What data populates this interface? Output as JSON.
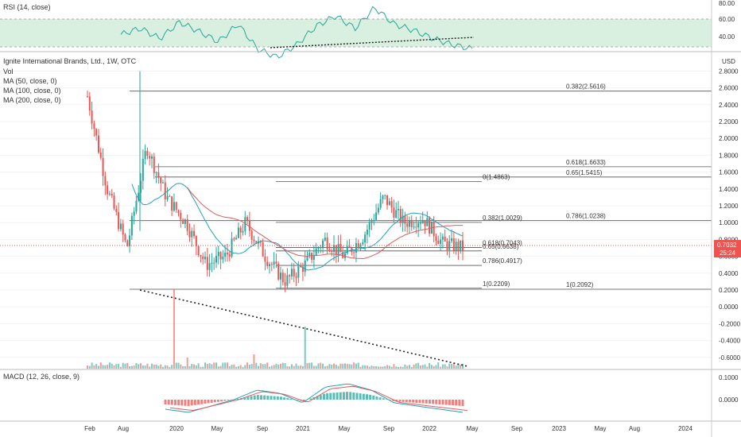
{
  "rsi_panel": {
    "label": "RSI (14, close)",
    "ticks": [
      "80.00",
      "60.00",
      "40.00"
    ]
  },
  "price_panel": {
    "title": "Ignite International Brands, Ltd., 1W, OTC",
    "legend": [
      "Vol",
      "MA (50, close, 0)",
      "MA (100, close, 0)",
      "MA (200, close, 0)"
    ],
    "currency": "USD",
    "ticks": [
      "2.8000",
      "2.6000",
      "2.4000",
      "2.2000",
      "2.0000",
      "1.8000",
      "1.6000",
      "1.4000",
      "1.2000",
      "1.0000",
      "0.8000",
      "0.6000",
      "0.4000",
      "0.2000",
      "0.0000",
      "-0.2000",
      "-0.4000",
      "-0.6000"
    ],
    "current_price": "0.7032",
    "countdown": "25:24"
  },
  "macd_panel": {
    "label": "MACD (12, 26, close, 9)",
    "ticks": [
      "0.1000",
      "0.0000"
    ]
  },
  "x_axis": {
    "labels": [
      "Feb",
      "Aug",
      "2020",
      "May",
      "Sep",
      "2021",
      "May",
      "Sep",
      "2022",
      "May",
      "Sep",
      "2023",
      "May",
      "Aug",
      "2024"
    ]
  },
  "fib_labels": [
    "0.382(2.5616)",
    "0.618(1.6633)",
    "0.65(1.5415)",
    "0(1.4863)",
    "0.382(1.0029)",
    "0.786(1.0238)",
    "0.618(0.7043)",
    "0.65(0.6638)",
    "0.786(0.4917)",
    "1(0.2209)",
    "1(0.2092)"
  ],
  "colors": {
    "up": "#26a69a",
    "down": "#ef5350",
    "rsi_line": "#26a69a",
    "rsi_band": "#d9efe0",
    "ma": "#21a2ba",
    "ma_red": "#e05a5a",
    "price_tag": "#ef5350",
    "fib_line": "#555555"
  },
  "chart_data": {
    "type": "candlestick",
    "title": "Ignite International Brands, Ltd., 1W, OTC",
    "ylabel": "USD",
    "ylim": [
      -0.6,
      2.8
    ],
    "last_price": 0.7032,
    "fib_levels": [
      {
        "ratio": "0.382",
        "price": 2.5616
      },
      {
        "ratio": "0.618",
        "price": 1.6633
      },
      {
        "ratio": "0.65",
        "price": 1.5415
      },
      {
        "ratio": "0",
        "price": 1.4863
      },
      {
        "ratio": "0.786",
        "price": 1.0238
      },
      {
        "ratio": "0.382",
        "price": 1.0029
      },
      {
        "ratio": "0.618",
        "price": 0.7043
      },
      {
        "ratio": "0.65",
        "price": 0.6638
      },
      {
        "ratio": "0.786",
        "price": 0.4917
      },
      {
        "ratio": "1",
        "price": 0.2209
      },
      {
        "ratio": "1",
        "price": 0.2092
      }
    ],
    "price_path": [
      {
        "x": "2019-02",
        "close": 2.5
      },
      {
        "x": "2019-05",
        "close": 1.4
      },
      {
        "x": "2019-07",
        "close": 0.7
      },
      {
        "x": "2019-09",
        "close": 1.9
      },
      {
        "x": "2019-11",
        "close": 1.3
      },
      {
        "x": "2020-01",
        "close": 1.0
      },
      {
        "x": "2020-03",
        "close": 0.5
      },
      {
        "x": "2020-05",
        "close": 0.6
      },
      {
        "x": "2020-06",
        "close": 1.0
      },
      {
        "x": "2020-08",
        "close": 0.6
      },
      {
        "x": "2020-09",
        "close": 0.3
      },
      {
        "x": "2020-12",
        "close": 0.5
      },
      {
        "x": "2021-02",
        "close": 0.8
      },
      {
        "x": "2021-05",
        "close": 0.6
      },
      {
        "x": "2021-07",
        "close": 0.85
      },
      {
        "x": "2021-09",
        "close": 1.3
      },
      {
        "x": "2021-11",
        "close": 1.0
      },
      {
        "x": "2022-01",
        "close": 1.05
      },
      {
        "x": "2022-03",
        "close": 0.75
      },
      {
        "x": "2022-04",
        "close": 0.7032
      }
    ],
    "rsi": {
      "ylim": [
        20,
        80
      ],
      "values": [
        52,
        58,
        48,
        64,
        55,
        45,
        62,
        38,
        30,
        42,
        60,
        70,
        58,
        78,
        62,
        56,
        48,
        42,
        38
      ]
    },
    "macd": {
      "values": [
        -0.03,
        -0.04,
        -0.02,
        0.0,
        0.03,
        0.02,
        -0.01,
        0.04,
        0.05,
        0.03,
        -0.01,
        -0.02,
        -0.03,
        -0.04
      ]
    },
    "grid": true
  }
}
